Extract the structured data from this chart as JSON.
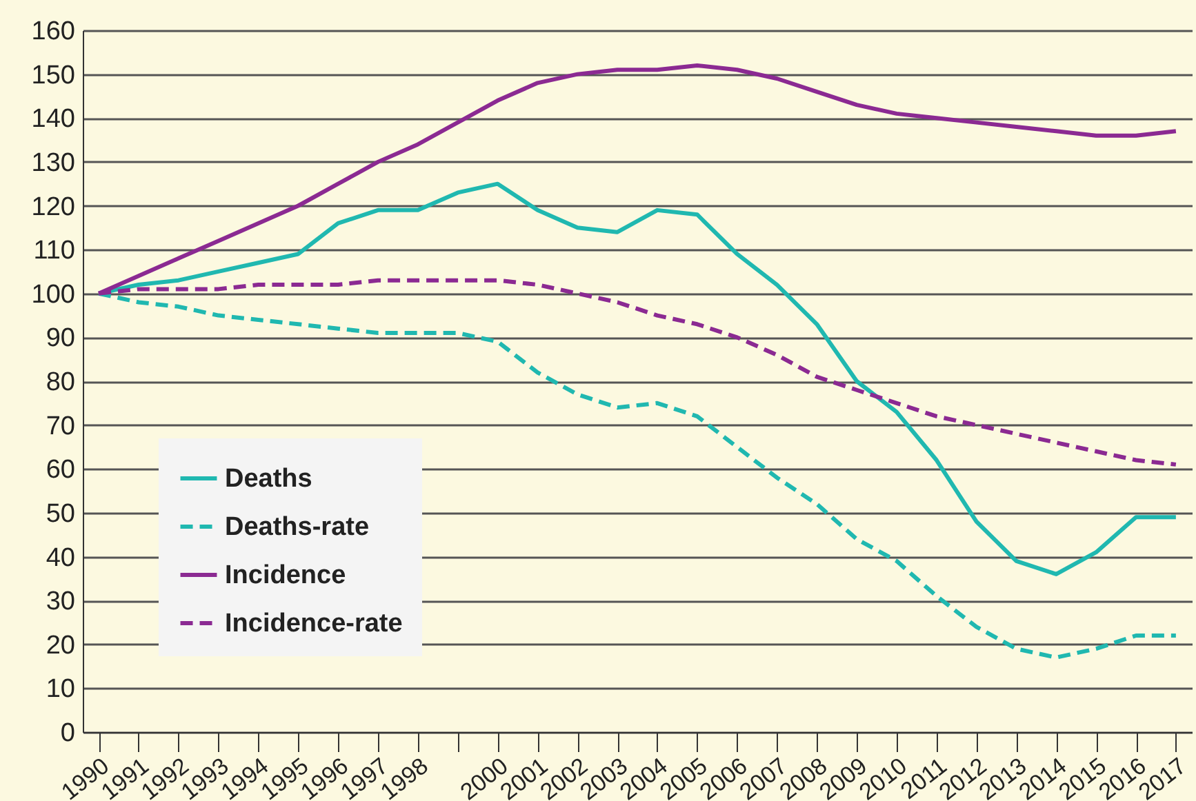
{
  "chart_data": {
    "type": "line",
    "categories": [
      "1990",
      "1991",
      "1992",
      "1993",
      "1994",
      "1995",
      "1996",
      "1997",
      "1998",
      null,
      "2000",
      "2001",
      "2002",
      "2003",
      "2004",
      "2005",
      "2006",
      "2007",
      "2008",
      "2009",
      "2010",
      "2011",
      "2012",
      "2013",
      "2014",
      "2015",
      "2016",
      "2017"
    ],
    "series": [
      {
        "name": "Deaths",
        "color": "#20b8b0",
        "line_style": "solid",
        "values": [
          100,
          102,
          103,
          105,
          107,
          109,
          116,
          119,
          119,
          123,
          125,
          119,
          115,
          114,
          119,
          118,
          109,
          102,
          93,
          80,
          73,
          62,
          48,
          39,
          36,
          41,
          49,
          49
        ]
      },
      {
        "name": "Deaths-rate",
        "color": "#20b8b0",
        "line_style": "dashed",
        "values": [
          100,
          98,
          97,
          95,
          94,
          93,
          92,
          91,
          91,
          91,
          89,
          82,
          77,
          74,
          75,
          72,
          65,
          58,
          52,
          44,
          39,
          31,
          24,
          19,
          17,
          19,
          22,
          22
        ]
      },
      {
        "name": "Incidence",
        "color": "#8b2a92",
        "line_style": "solid",
        "values": [
          100,
          104,
          108,
          112,
          116,
          120,
          125,
          130,
          134,
          139,
          144,
          148,
          150,
          151,
          151,
          152,
          151,
          149,
          146,
          143,
          141,
          140,
          139,
          138,
          137,
          136,
          136,
          137
        ]
      },
      {
        "name": "Incidence-rate",
        "color": "#8b2a92",
        "line_style": "dashed",
        "values": [
          100,
          101,
          101,
          101,
          102,
          102,
          102,
          103,
          103,
          103,
          103,
          102,
          100,
          98,
          95,
          93,
          90,
          86,
          81,
          78,
          75,
          72,
          70,
          68,
          66,
          64,
          62,
          61
        ]
      }
    ],
    "ylim": [
      0,
      160
    ],
    "yticks": [
      0,
      10,
      20,
      30,
      40,
      50,
      60,
      70,
      80,
      90,
      100,
      110,
      120,
      130,
      140,
      150,
      160
    ],
    "grid": "y",
    "legend": "bottom left",
    "marker": "none"
  }
}
